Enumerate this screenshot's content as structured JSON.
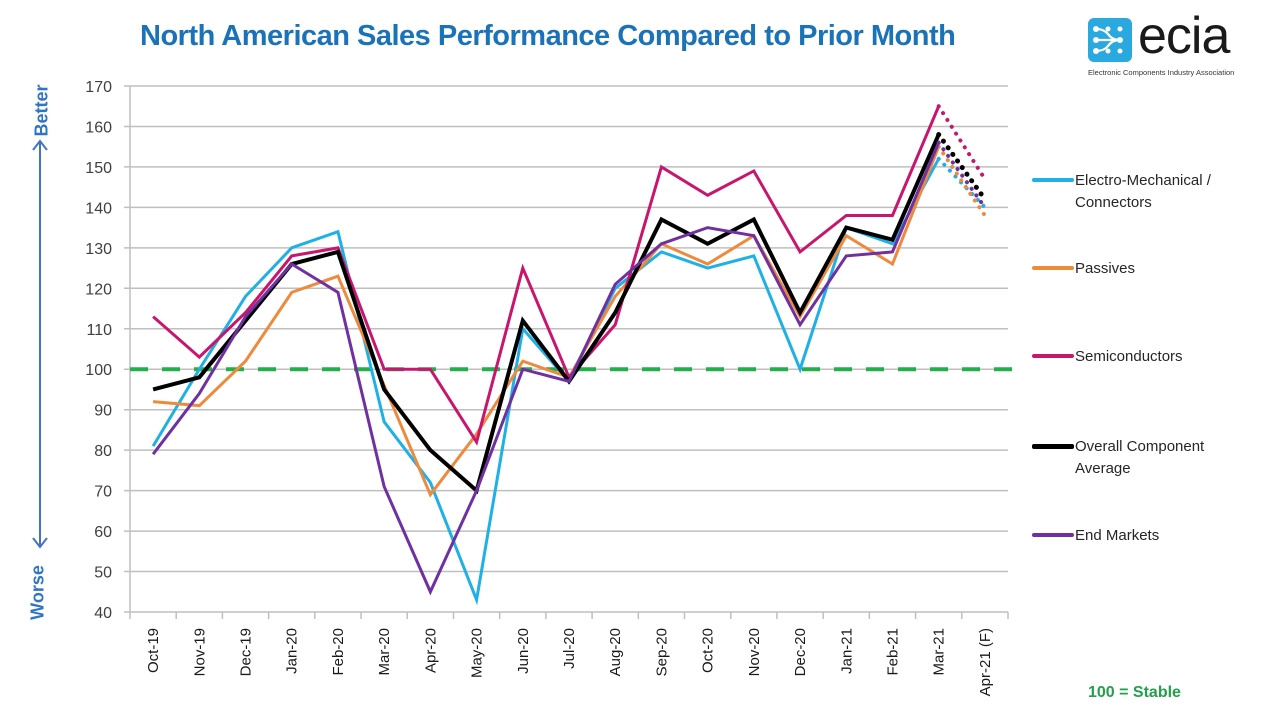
{
  "header": {
    "title": "North American Sales Performance Compared to Prior Month"
  },
  "logo": {
    "name": "ecia",
    "subtitle": "Electronic Components Industry Association",
    "color": "#2aa8e0"
  },
  "side_labels": {
    "top": "Better",
    "bottom": "Worse",
    "arrow_color": "#4472c4",
    "text_color": "#2e75c4"
  },
  "footer": {
    "stable_note": "100 = Stable",
    "stable_color": "#22a04b"
  },
  "chart_data": {
    "type": "line",
    "title": "North American Sales Performance Compared to Prior Month",
    "xlabel": "",
    "ylabel": "",
    "ylim": [
      40,
      170
    ],
    "yticks": [
      40,
      50,
      60,
      70,
      80,
      90,
      100,
      110,
      120,
      130,
      140,
      150,
      160,
      170
    ],
    "grid": true,
    "legend_position": "right",
    "categories": [
      "Oct-19",
      "Nov-19",
      "Dec-19",
      "Jan-20",
      "Feb-20",
      "Mar-20",
      "Apr-20",
      "May-20",
      "Jun-20",
      "Jul-20",
      "Aug-20",
      "Sep-20",
      "Oct-20",
      "Nov-20",
      "Dec-20",
      "Jan-21",
      "Feb-21",
      "Mar-21",
      "Apr-21 (F)"
    ],
    "forecast_from_index": 17,
    "reference_line": {
      "value": 100,
      "label": "100 = Stable",
      "color": "#22b04b",
      "style": "dashed"
    },
    "series": [
      {
        "name": "Electro-Mechanical / Connectors",
        "color": "#1fb0e6",
        "width": 3,
        "values": [
          81,
          100,
          118,
          130,
          134,
          87,
          72,
          43,
          110,
          97,
          120,
          129,
          125,
          128,
          100,
          135,
          131,
          152,
          140
        ]
      },
      {
        "name": "Passives",
        "color": "#ef8a3c",
        "width": 3,
        "values": [
          92,
          91,
          102,
          119,
          123,
          96,
          69,
          84,
          102,
          98,
          118,
          131,
          126,
          133,
          113,
          133,
          126,
          155,
          138
        ]
      },
      {
        "name": "Semiconductors",
        "color": "#c8166e",
        "width": 3,
        "values": [
          113,
          103,
          114,
          128,
          130,
          100,
          100,
          82,
          125,
          98,
          111,
          150,
          143,
          149,
          129,
          138,
          138,
          165,
          147
        ]
      },
      {
        "name": "Overall Component Average",
        "color": "#000000",
        "width": 4,
        "values": [
          95,
          98,
          112,
          126,
          129,
          95,
          80,
          70,
          112,
          97,
          114,
          137,
          131,
          137,
          114,
          135,
          132,
          158,
          142
        ]
      },
      {
        "name": "End Markets",
        "color": "#7030a0",
        "width": 3,
        "values": [
          79,
          94,
          113,
          126,
          119,
          71,
          45,
          70,
          100,
          97,
          121,
          131,
          135,
          133,
          111,
          128,
          129,
          156,
          140
        ]
      }
    ],
    "legend": [
      {
        "label": "Electro-Mechanical / Connectors",
        "color": "#1fb0e6"
      },
      {
        "label": "Passives",
        "color": "#ef8a3c"
      },
      {
        "label": "Semiconductors",
        "color": "#c8166e"
      },
      {
        "label": "Overall Component Average",
        "color": "#000000"
      },
      {
        "label": "End Markets",
        "color": "#7030a0"
      }
    ]
  }
}
